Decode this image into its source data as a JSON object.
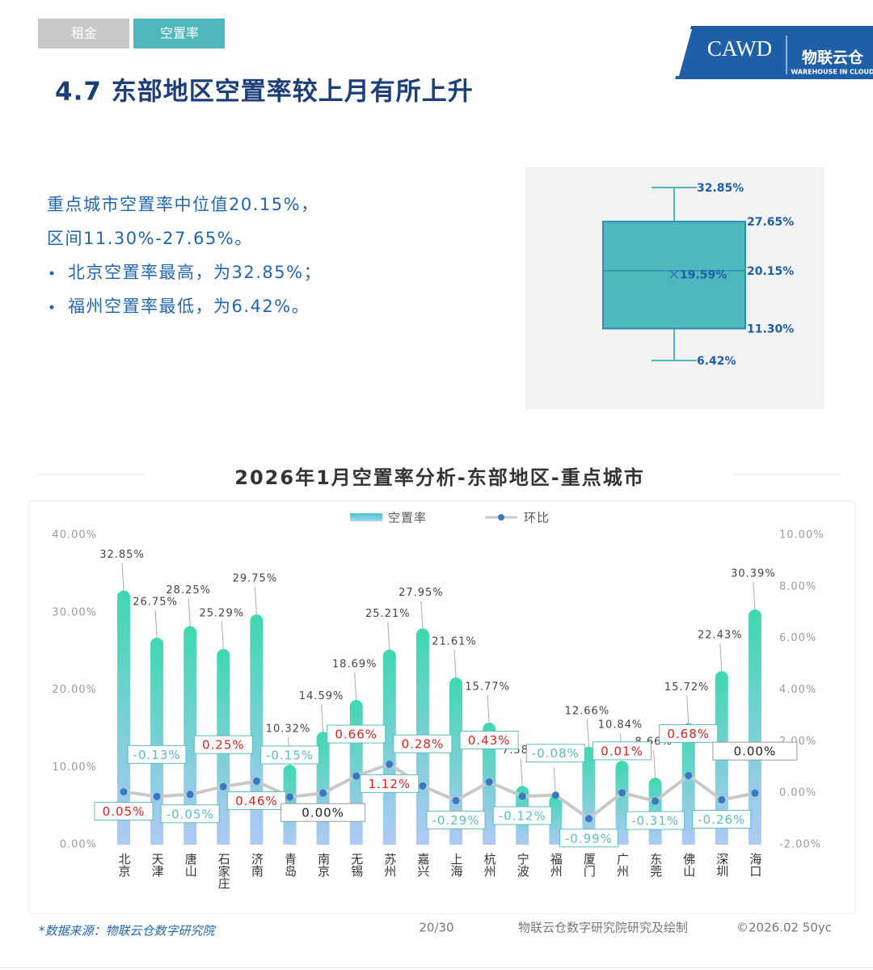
{
  "header": {
    "tabs": [
      "租金",
      "空置率"
    ],
    "logo": {
      "cawd": "CAWD",
      "brand": "物联云仓",
      "brand_en": "WAREHOUSE IN CLOUD"
    },
    "title": "4.7 东部地区空置率较上月有所上升"
  },
  "summary": {
    "lines": [
      "重点城市空置率中位值20.15%，",
      "区间11.30%-27.65%。"
    ],
    "bullets": [
      "北京空置率最高，为32.85%；",
      "福州空置率最低，为6.42%。"
    ]
  },
  "chart_data": [
    {
      "type": "box",
      "color": "#4fb8bf",
      "stats": {
        "max": 32.85,
        "q3": 27.65,
        "median": 20.15,
        "mean": 19.59,
        "q1": 11.3,
        "min": 6.42
      },
      "value_labels": {
        "max": "32.85%",
        "q3": "27.65%",
        "median": "20.15%",
        "mean": "19.59%",
        "q1": "11.30%",
        "min": "6.42%"
      }
    },
    {
      "type": "bar-line",
      "title": "2026年1月空置率分析-东部地区-重点城市",
      "legend": "top",
      "categories": [
        "北京",
        "天津",
        "唐山",
        "石家庄",
        "济南",
        "青岛",
        "南京",
        "无锡",
        "苏州",
        "嘉兴",
        "上海",
        "杭州",
        "宁波",
        "福州",
        "厦门",
        "广州",
        "东莞",
        "佛山",
        "深圳",
        "海口"
      ],
      "series": [
        {
          "name": "空置率",
          "type": "bar",
          "color": "#3fd8b0",
          "values": [
            32.85,
            26.75,
            28.25,
            25.29,
            29.75,
            10.32,
            14.59,
            18.69,
            25.21,
            27.95,
            21.61,
            15.77,
            7.58,
            6.42,
            12.66,
            10.84,
            8.66,
            15.72,
            22.43,
            30.39
          ],
          "value_labels": [
            "32.85%",
            "26.75%",
            "28.25%",
            "25.29%",
            "29.75%",
            "10.32%",
            "14.59%",
            "18.69%",
            "25.21%",
            "27.95%",
            "21.61%",
            "15.77%",
            "7.58%",
            "6.42%",
            "12.66%",
            "10.84%",
            "8.66%",
            "15.72%",
            "22.43%",
            "30.39%"
          ]
        },
        {
          "name": "环比",
          "type": "line",
          "axis": "y2",
          "color": "#c8c8c8",
          "marker_color": "#3b78c3",
          "values": [
            0.05,
            -0.13,
            -0.05,
            0.25,
            0.46,
            -0.15,
            0.0,
            0.66,
            1.12,
            0.28,
            -0.29,
            0.43,
            -0.12,
            -0.08,
            -0.99,
            0.01,
            -0.31,
            0.68,
            -0.26,
            0.0
          ],
          "value_labels": [
            "0.05%",
            "-0.13%",
            "-0.05%",
            "0.25%",
            "0.46%",
            "-0.15%",
            "0.00%",
            "0.66%",
            "1.12%",
            "0.28%",
            "-0.29%",
            "0.43%",
            "-0.12%",
            "-0.08%",
            "-0.99%",
            "0.01%",
            "-0.31%",
            "0.68%",
            "-0.26%",
            "0.00%"
          ]
        }
      ],
      "ylim": [
        0,
        40
      ],
      "yticks": [
        {
          "value": 0,
          "label": "0.00%"
        },
        {
          "value": 10,
          "label": "10.00%"
        },
        {
          "value": 20,
          "label": "20.00%"
        },
        {
          "value": 30,
          "label": "30.00%"
        },
        {
          "value": 40,
          "label": "40.00%"
        }
      ],
      "y2lim": [
        -2,
        10
      ],
      "y2ticks": [
        {
          "value": -2,
          "label": "-2.00%"
        },
        {
          "value": 0,
          "label": "0.00%"
        },
        {
          "value": 2,
          "label": "2.00%"
        },
        {
          "value": 4,
          "label": "4.00%"
        },
        {
          "value": 6,
          "label": "6.00%"
        },
        {
          "value": 8,
          "label": "8.00%"
        },
        {
          "value": 10,
          "label": "10.00%"
        }
      ]
    }
  ],
  "footer": {
    "source": "*数据来源：物联云仓数字研究院",
    "page": "20/30",
    "credit": "物联云仓数字研究院研究及绘制",
    "copyright": "©2026.02 50yc"
  }
}
